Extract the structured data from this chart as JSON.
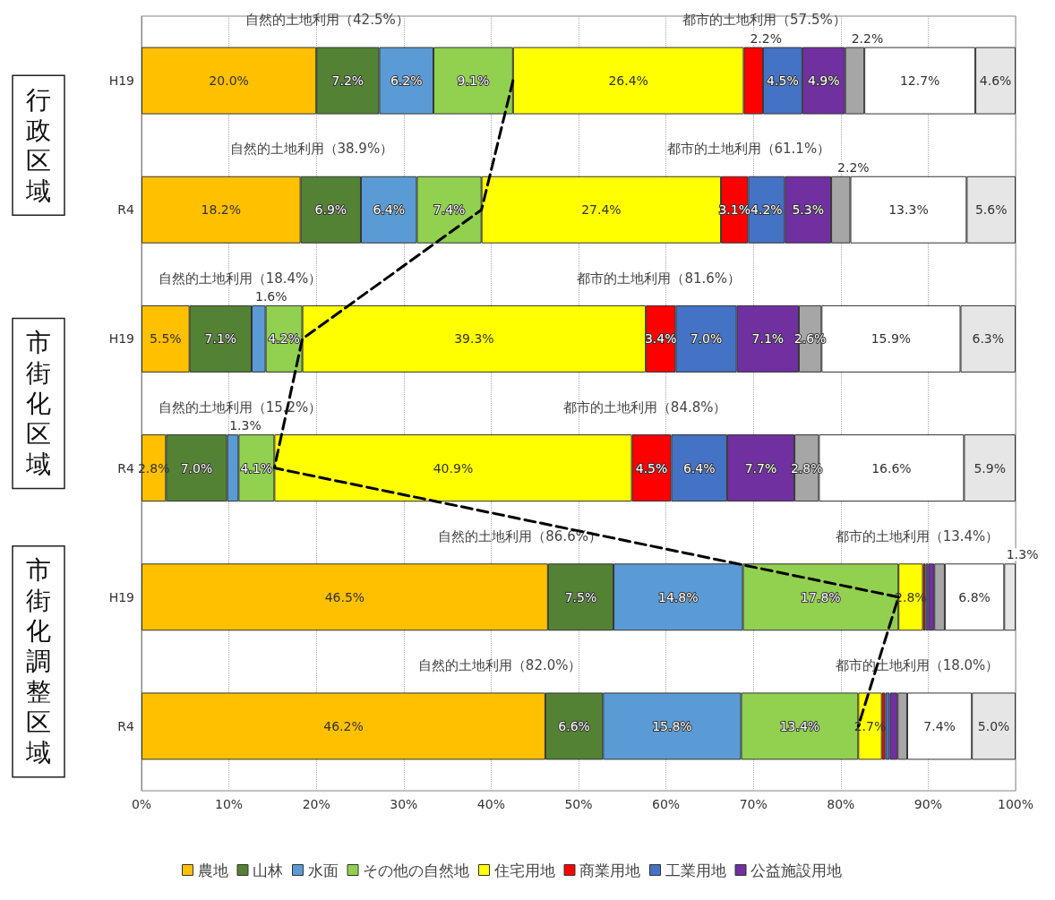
{
  "chart_data": {
    "type": "bar",
    "orientation": "horizontal",
    "stacked": true,
    "categories": [
      "H19",
      "R4",
      "H19",
      "R4",
      "H19",
      "R4"
    ],
    "xlim": [
      0,
      100
    ],
    "xticks": [
      {
        "value": 0,
        "label": "0%"
      },
      {
        "value": 10,
        "label": "10%"
      },
      {
        "value": 20,
        "label": "20%"
      },
      {
        "value": 30,
        "label": "30%"
      },
      {
        "value": 40,
        "label": "40%"
      },
      {
        "value": 50,
        "label": "50%"
      },
      {
        "value": 60,
        "label": "60%"
      },
      {
        "value": 70,
        "label": "70%"
      },
      {
        "value": 80,
        "label": "80%"
      },
      {
        "value": 90,
        "label": "90%"
      },
      {
        "value": 100,
        "label": "100%"
      }
    ],
    "grid": "x",
    "legend": "bottom",
    "series": [
      {
        "name": "農地",
        "color": "#ffc000",
        "values": [
          20.0,
          18.2,
          5.5,
          2.8,
          46.5,
          46.2
        ],
        "value_labels": [
          "20.0%",
          "18.2%",
          "5.5%",
          "2.8%",
          "46.5%",
          "46.2%"
        ]
      },
      {
        "name": "山林",
        "color": "#548235",
        "values": [
          7.2,
          6.9,
          7.1,
          7.0,
          7.5,
          6.6
        ],
        "value_labels": [
          "7.2%",
          "6.9%",
          "7.1%",
          "7.0%",
          "7.5%",
          "6.6%"
        ]
      },
      {
        "name": "水面",
        "color": "#5b9bd5",
        "values": [
          6.2,
          6.4,
          1.6,
          1.3,
          14.8,
          15.8
        ],
        "value_labels": [
          "6.2%",
          "6.4%",
          "1.6%",
          "1.3%",
          "14.8%",
          "15.8%"
        ]
      },
      {
        "name": "その他の自然地",
        "color": "#92d050",
        "values": [
          9.1,
          7.4,
          4.2,
          4.1,
          17.8,
          13.4
        ],
        "value_labels": [
          "9.1%",
          "7.4%",
          "4.2%",
          "4.1%",
          "17.8%",
          "13.4%"
        ]
      },
      {
        "name": "住宅用地",
        "color": "#ffff00",
        "values": [
          26.4,
          27.4,
          39.3,
          40.9,
          2.8,
          2.7
        ],
        "value_labels": [
          "26.4%",
          "27.4%",
          "39.3%",
          "40.9%",
          "2.8%",
          "2.7%"
        ]
      },
      {
        "name": "商業用地",
        "color": "#ff0000",
        "values": [
          2.2,
          3.1,
          3.4,
          4.5,
          0.3,
          0.4
        ],
        "value_labels": [
          "2.2%",
          "3.1%",
          "3.4%",
          "4.5%",
          null,
          null
        ]
      },
      {
        "name": "工業用地",
        "color": "#4472c4",
        "values": [
          4.5,
          4.2,
          7.0,
          6.4,
          0.3,
          0.5
        ],
        "value_labels": [
          "4.5%",
          "4.2%",
          "7.0%",
          "6.4%",
          null,
          null
        ]
      },
      {
        "name": "公益施設用地",
        "color": "#7030a0",
        "values": [
          4.9,
          5.3,
          7.1,
          7.7,
          0.7,
          0.9
        ],
        "value_labels": [
          "4.9%",
          "5.3%",
          "7.1%",
          "7.7%",
          null,
          null
        ]
      },
      {
        "color": "#a6a6a6",
        "values": [
          2.2,
          2.2,
          2.6,
          2.8,
          1.2,
          1.1
        ],
        "value_labels": [
          "2.2%",
          "2.2%",
          "2.6%",
          "2.8%",
          null,
          null
        ]
      },
      {
        "color": "#ffffff",
        "values": [
          12.7,
          13.3,
          15.9,
          16.6,
          6.8,
          7.4
        ],
        "value_labels": [
          "12.7%",
          "13.3%",
          "15.9%",
          "16.6%",
          "6.8%",
          "7.4%"
        ]
      },
      {
        "color": "#e7e6e6",
        "values": [
          4.6,
          5.6,
          6.3,
          5.9,
          1.3,
          5.0
        ],
        "value_labels": [
          "4.6%",
          "5.6%",
          "6.3%",
          "5.9%",
          "1.3%",
          "5.0%"
        ]
      },
      {
        "type": "line",
        "color": "#000000",
        "line_style": "dashed",
        "marker": "none",
        "values": [
          42.5,
          38.9,
          18.4,
          15.2,
          86.6,
          82.0
        ]
      }
    ],
    "annotations": [
      "自然的土地利用（42.5%）",
      "都市的土地利用（57.5%）",
      "自然的土地利用（38.9%）",
      "都市的土地利用（61.1%）",
      "自然的土地利用（18.4%）",
      "都市的土地利用（81.6%）",
      "自然的土地利用（15.2%）",
      "都市的土地利用（84.8%）",
      "自然的土地利用（86.6%）",
      "都市的土地利用（13.4%）",
      "自然的土地利用（82.0%）",
      "都市的土地利用（18.0%）",
      "行政区域",
      "市街化区域",
      "市街化調整区域"
    ]
  }
}
